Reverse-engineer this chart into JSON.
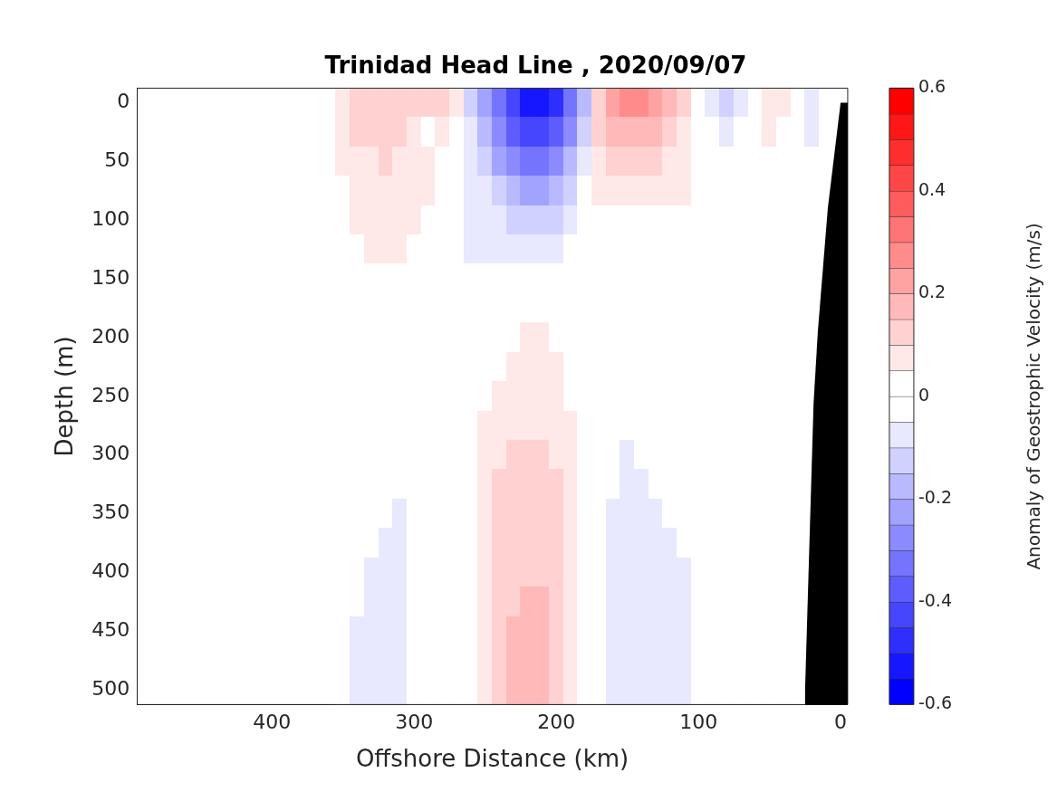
{
  "chart_data": {
    "type": "heatmap",
    "title": "Trinidad Head Line , 2020/09/07",
    "xlabel": "Offshore Distance (km)",
    "ylabel": "Depth (m)",
    "clabel": "Anomaly of Geostrophic Velocity (m/s)",
    "categories": [
      null,
      null,
      null,
      null,
      null,
      null,
      null,
      null,
      null,
      "400",
      null,
      null,
      null,
      null,
      null,
      null,
      null,
      null,
      null,
      "300",
      null,
      null,
      null,
      null,
      null,
      null,
      null,
      null,
      null,
      "200",
      null,
      null,
      null,
      null,
      null,
      null,
      null,
      null,
      null,
      "100",
      null,
      null,
      null,
      null,
      null,
      null,
      null,
      null,
      null,
      "0"
    ],
    "y_categories": [
      "0",
      null,
      "50",
      null,
      "100",
      null,
      "150",
      null,
      "200",
      null,
      "250",
      null,
      "300",
      null,
      "350",
      null,
      "400",
      null,
      "450",
      null,
      "500"
    ],
    "clim": [
      -0.6,
      0.6
    ],
    "cticks": [
      -0.6,
      -0.4,
      -0.2,
      0,
      0.2,
      0.4,
      0.6
    ],
    "colors": [
      "#0000ff",
      "#ffffff",
      "#ff0000"
    ],
    "cells": [
      [
        null,
        null,
        null,
        null,
        null,
        null,
        null,
        null,
        null,
        null,
        null,
        null,
        null,
        null,
        0.07,
        0.12,
        0.12,
        0.12,
        0.12,
        0.12,
        0.12,
        0.12,
        0.07,
        -0.12,
        -0.22,
        -0.32,
        -0.42,
        -0.52,
        -0.52,
        -0.47,
        -0.32,
        -0.17,
        0.12,
        0.22,
        0.27,
        0.27,
        0.22,
        0.17,
        0.12,
        0,
        -0.07,
        -0.12,
        -0.07,
        0,
        0.07,
        0.07,
        0,
        -0.07,
        0,
        null
      ],
      [
        null,
        null,
        null,
        null,
        null,
        null,
        null,
        null,
        null,
        null,
        null,
        null,
        null,
        null,
        0.07,
        0.12,
        0.12,
        0.12,
        0.12,
        0.07,
        0,
        0.07,
        0,
        -0.07,
        -0.17,
        -0.27,
        -0.37,
        -0.42,
        -0.42,
        -0.37,
        -0.27,
        -0.12,
        0.12,
        0.17,
        0.17,
        0.17,
        0.17,
        0.12,
        0.07,
        0,
        0,
        -0.07,
        0,
        0,
        0.07,
        0,
        0,
        -0.07,
        0,
        null
      ],
      [
        null,
        null,
        null,
        null,
        null,
        null,
        null,
        null,
        null,
        null,
        null,
        null,
        null,
        null,
        0.07,
        0.07,
        0.07,
        0.12,
        0.07,
        0.07,
        0.07,
        0,
        0,
        -0.07,
        -0.12,
        -0.22,
        -0.27,
        -0.32,
        -0.32,
        -0.27,
        -0.17,
        -0.07,
        0.07,
        0.12,
        0.12,
        0.12,
        0.12,
        0.07,
        0.07,
        0,
        0,
        0,
        0,
        0,
        0,
        0,
        0,
        0,
        0,
        null
      ],
      [
        null,
        null,
        null,
        null,
        null,
        null,
        null,
        null,
        null,
        null,
        null,
        null,
        null,
        null,
        0,
        0.07,
        0.07,
        0.07,
        0.07,
        0.07,
        0.07,
        0,
        0,
        -0.07,
        -0.07,
        -0.12,
        -0.17,
        -0.22,
        -0.22,
        -0.17,
        -0.12,
        0,
        0.07,
        0.07,
        0.07,
        0.07,
        0.07,
        0.07,
        0.07,
        0,
        0,
        0,
        0,
        0,
        0,
        0,
        0,
        0,
        null,
        null
      ],
      [
        null,
        null,
        null,
        null,
        null,
        null,
        null,
        null,
        null,
        null,
        null,
        null,
        null,
        null,
        0,
        0.07,
        0.07,
        0.07,
        0.07,
        0.07,
        0,
        0,
        0,
        -0.07,
        -0.07,
        -0.07,
        -0.12,
        -0.12,
        -0.12,
        -0.12,
        -0.07,
        0,
        0,
        0,
        0,
        0,
        0,
        0,
        0,
        0,
        0,
        0,
        0,
        0,
        0,
        0,
        0,
        0,
        null,
        null
      ],
      [
        null,
        null,
        null,
        null,
        null,
        null,
        null,
        null,
        null,
        null,
        null,
        null,
        null,
        null,
        0,
        0,
        0.07,
        0.07,
        0.07,
        0,
        0,
        0,
        0,
        -0.07,
        -0.07,
        -0.07,
        -0.07,
        -0.07,
        -0.07,
        -0.07,
        0,
        0,
        0,
        0,
        0,
        0,
        0,
        0,
        0,
        0,
        0,
        0,
        0,
        0,
        0,
        0,
        0,
        0,
        null,
        null
      ],
      [
        null,
        null,
        null,
        null,
        null,
        null,
        null,
        null,
        null,
        null,
        null,
        null,
        null,
        null,
        0,
        0,
        0,
        0,
        0,
        0,
        0,
        0,
        0,
        0,
        0,
        0,
        0,
        0,
        0,
        0,
        0,
        0,
        0,
        0,
        0,
        0,
        0,
        0,
        0,
        0,
        0,
        0,
        0,
        0,
        0,
        0,
        0,
        0,
        null,
        null
      ],
      [
        null,
        null,
        null,
        null,
        null,
        null,
        null,
        null,
        null,
        null,
        null,
        null,
        null,
        null,
        0,
        0,
        0,
        0,
        0,
        0,
        0,
        0,
        0,
        0,
        0,
        0,
        0,
        0,
        0,
        0,
        0,
        0,
        0,
        0,
        0,
        0,
        0,
        0,
        0,
        0,
        0,
        0,
        0,
        0,
        0,
        0,
        0,
        null,
        null,
        null
      ],
      [
        null,
        null,
        null,
        null,
        null,
        null,
        null,
        null,
        null,
        null,
        null,
        null,
        null,
        null,
        0,
        0,
        0,
        0,
        0,
        0,
        0,
        0,
        0,
        0,
        0,
        0,
        0,
        0.07,
        0.07,
        0,
        0,
        0,
        0,
        0,
        0,
        0,
        0,
        0,
        0,
        0,
        0,
        0,
        0,
        0,
        0,
        0,
        0,
        null,
        null,
        null
      ],
      [
        null,
        null,
        null,
        null,
        null,
        null,
        null,
        null,
        null,
        null,
        null,
        null,
        null,
        null,
        0,
        0,
        0,
        0,
        0,
        0,
        0,
        0,
        0,
        0,
        0,
        0,
        0.07,
        0.07,
        0.07,
        0.07,
        0,
        0,
        0,
        0,
        0,
        0,
        0,
        0,
        0,
        0,
        0,
        0,
        0,
        0,
        0,
        0,
        0,
        null,
        null,
        null
      ],
      [
        null,
        null,
        null,
        null,
        null,
        null,
        null,
        null,
        null,
        null,
        null,
        null,
        null,
        null,
        0,
        0,
        0,
        0,
        0,
        0,
        0,
        0,
        0,
        0,
        0,
        0.07,
        0.07,
        0.07,
        0.07,
        0.07,
        0,
        0,
        0,
        0,
        0,
        0,
        0,
        0,
        0,
        0,
        0,
        0,
        0,
        0,
        0,
        0,
        0,
        null,
        null,
        null
      ],
      [
        null,
        null,
        null,
        null,
        null,
        null,
        null,
        null,
        null,
        null,
        null,
        null,
        null,
        null,
        0,
        0,
        0,
        0,
        0,
        0,
        0,
        0,
        0,
        0,
        0.07,
        0.07,
        0.07,
        0.07,
        0.07,
        0.07,
        0.07,
        0,
        0,
        0,
        0,
        0,
        0,
        0,
        0,
        0,
        0,
        0,
        0,
        0,
        0,
        0,
        0,
        null,
        null,
        null
      ],
      [
        null,
        null,
        null,
        null,
        null,
        null,
        null,
        null,
        null,
        null,
        null,
        null,
        null,
        null,
        0,
        0,
        0,
        0,
        0,
        0,
        0,
        0,
        0,
        0,
        0.07,
        0.07,
        0.12,
        0.12,
        0.12,
        0.07,
        0.07,
        0,
        0,
        0,
        -0.07,
        0,
        0,
        0,
        0,
        0,
        0,
        0,
        0,
        0,
        0,
        0,
        0,
        null,
        null,
        null
      ],
      [
        null,
        null,
        null,
        null,
        null,
        null,
        null,
        null,
        null,
        null,
        null,
        null,
        null,
        null,
        0,
        0,
        0,
        0,
        0,
        0,
        0,
        0,
        0,
        0,
        0.07,
        0.12,
        0.12,
        0.12,
        0.12,
        0.12,
        0.07,
        0,
        0,
        0,
        -0.07,
        -0.07,
        0,
        0,
        0,
        0,
        0,
        0,
        0,
        0,
        0,
        0,
        0,
        null,
        null,
        null
      ],
      [
        null,
        null,
        null,
        null,
        null,
        null,
        null,
        null,
        null,
        null,
        null,
        null,
        null,
        null,
        0,
        0,
        0,
        0,
        -0.07,
        0,
        0,
        0,
        0,
        0,
        0.07,
        0.12,
        0.12,
        0.12,
        0.12,
        0.12,
        0.07,
        0,
        0,
        -0.07,
        -0.07,
        -0.07,
        -0.07,
        0,
        0,
        0,
        0,
        0,
        0,
        0,
        0,
        0,
        0,
        null,
        null,
        null
      ],
      [
        null,
        null,
        null,
        null,
        null,
        null,
        null,
        null,
        null,
        null,
        null,
        null,
        null,
        null,
        0,
        0,
        0,
        -0.07,
        -0.07,
        0,
        0,
        0,
        0,
        0,
        0.07,
        0.12,
        0.12,
        0.12,
        0.12,
        0.12,
        0.07,
        0,
        0,
        -0.07,
        -0.07,
        -0.07,
        -0.07,
        -0.07,
        0,
        0,
        0,
        0,
        0,
        0,
        0,
        0,
        0,
        null,
        null,
        null
      ],
      [
        null,
        null,
        null,
        null,
        null,
        null,
        null,
        null,
        null,
        null,
        null,
        null,
        null,
        null,
        0,
        0,
        -0.07,
        -0.07,
        -0.07,
        0,
        0,
        0,
        0,
        0,
        0.07,
        0.12,
        0.12,
        0.12,
        0.12,
        0.12,
        0.07,
        0,
        0,
        -0.07,
        -0.07,
        -0.07,
        -0.07,
        -0.07,
        -0.07,
        0,
        0,
        0,
        0,
        0,
        0,
        0,
        0,
        null,
        null,
        null
      ],
      [
        null,
        null,
        null,
        null,
        null,
        null,
        null,
        null,
        null,
        null,
        null,
        null,
        null,
        null,
        0,
        0,
        -0.07,
        -0.07,
        -0.07,
        0,
        0,
        0,
        0,
        0,
        0.07,
        0.12,
        0.12,
        0.17,
        0.17,
        0.12,
        0.07,
        0,
        0,
        -0.07,
        -0.07,
        -0.07,
        -0.07,
        -0.07,
        -0.07,
        0,
        0,
        0,
        0,
        0,
        0,
        0,
        0,
        null,
        null,
        null
      ],
      [
        null,
        null,
        null,
        null,
        null,
        null,
        null,
        null,
        null,
        null,
        null,
        null,
        null,
        null,
        0,
        -0.07,
        -0.07,
        -0.07,
        -0.07,
        0,
        0,
        0,
        0,
        0,
        0.07,
        0.12,
        0.17,
        0.17,
        0.17,
        0.12,
        0.07,
        0,
        0,
        -0.07,
        -0.07,
        -0.07,
        -0.07,
        -0.07,
        -0.07,
        0,
        0,
        0,
        0,
        0,
        0,
        0,
        0,
        null,
        null,
        null
      ],
      [
        null,
        null,
        null,
        null,
        null,
        null,
        null,
        null,
        null,
        null,
        null,
        null,
        null,
        null,
        0,
        -0.07,
        -0.07,
        -0.07,
        -0.07,
        0,
        0,
        0,
        0,
        0,
        0.07,
        0.12,
        0.17,
        0.17,
        0.17,
        0.12,
        0.07,
        0,
        0,
        -0.07,
        -0.07,
        -0.07,
        -0.07,
        -0.07,
        -0.07,
        0,
        0,
        0,
        0,
        0,
        0,
        0,
        0,
        null,
        null,
        null
      ],
      [
        null,
        null,
        null,
        null,
        null,
        null,
        null,
        null,
        null,
        null,
        null,
        null,
        null,
        null,
        0,
        -0.07,
        -0.07,
        -0.07,
        -0.07,
        0,
        0,
        0,
        0,
        0,
        0.07,
        0.12,
        0.17,
        0.17,
        0.17,
        0.12,
        0.07,
        0,
        0,
        -0.07,
        -0.07,
        -0.07,
        -0.07,
        -0.07,
        -0.07,
        0,
        0,
        0,
        0,
        0,
        0,
        0,
        0,
        null,
        null,
        null
      ]
    ]
  }
}
